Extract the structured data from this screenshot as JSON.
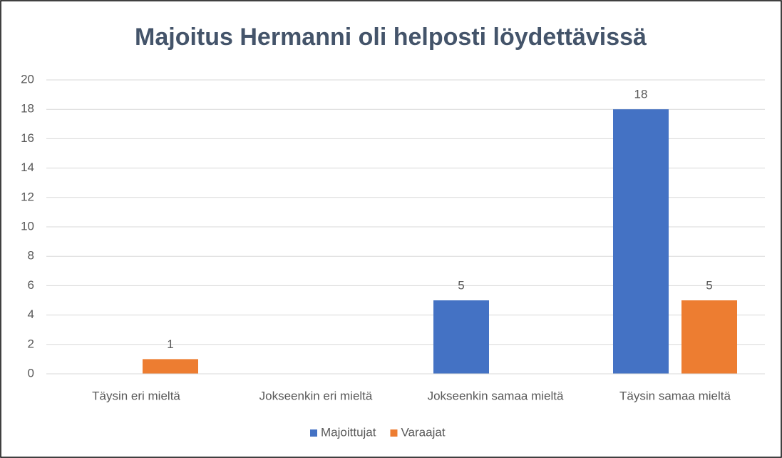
{
  "chart_data": {
    "type": "bar",
    "title": "Majoitus Hermanni oli helposti löydettävissä",
    "categories": [
      "Täysin eri mieltä",
      "Jokseenkin eri mieltä",
      "Jokseenkin samaa mieltä",
      "Täysin samaa mieltä"
    ],
    "series": [
      {
        "name": "Majoittujat",
        "color": "#4472c4",
        "values": [
          null,
          null,
          5,
          18
        ]
      },
      {
        "name": "Varaajat",
        "color": "#ed7d31",
        "values": [
          1,
          null,
          null,
          5
        ]
      }
    ],
    "ylim": [
      0,
      20
    ],
    "yticks": [
      0,
      2,
      4,
      6,
      8,
      10,
      12,
      14,
      16,
      18,
      20
    ],
    "grid": true,
    "legend": "bottom"
  }
}
